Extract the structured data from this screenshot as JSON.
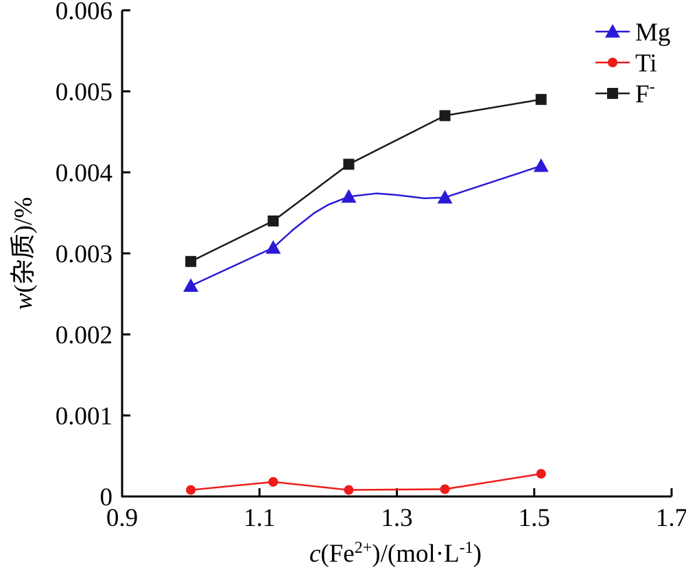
{
  "chart_data": {
    "type": "line",
    "xlabel": {
      "var": "c",
      "open": "(Fe",
      "sup1": "2+",
      "mid": ")/(mol·L",
      "sup2": "-1",
      "close": ")"
    },
    "ylabel": {
      "var": "w",
      "rest": "(杂质)/%"
    },
    "xlim": [
      0.9,
      1.7
    ],
    "ylim": [
      0,
      0.006
    ],
    "xticks": [
      0.9,
      1.1,
      1.3,
      1.5,
      1.7
    ],
    "xtick_labels": [
      "0.9",
      "1.1",
      "1.3",
      "1.5",
      "1.7"
    ],
    "yticks": [
      0,
      0.001,
      0.002,
      0.003,
      0.004,
      0.005,
      0.006
    ],
    "ytick_labels": [
      "0",
      "0.001",
      "0.002",
      "0.003",
      "0.004",
      "0.005",
      "0.006"
    ],
    "legend_position": "top-right",
    "grid": false,
    "series": [
      {
        "name": "Mg",
        "color": "#2b1bd6",
        "marker": "triangle",
        "x": [
          1.0,
          1.12,
          1.23,
          1.37,
          1.51
        ],
        "y": [
          0.0026,
          0.00307,
          0.0037,
          0.00369,
          0.00408
        ],
        "curve_x": [
          1.0,
          1.12,
          1.15,
          1.18,
          1.2,
          1.23,
          1.27,
          1.3,
          1.34,
          1.37,
          1.51
        ],
        "curve_y": [
          0.0026,
          0.00307,
          0.0033,
          0.0035,
          0.0036,
          0.0037,
          0.00374,
          0.00372,
          0.00368,
          0.00369,
          0.00408
        ]
      },
      {
        "name": "Ti",
        "color": "#f01a1a",
        "marker": "circle",
        "x": [
          1.0,
          1.12,
          1.23,
          1.37,
          1.51
        ],
        "y": [
          8e-05,
          0.00018,
          8e-05,
          9e-05,
          0.00028
        ]
      },
      {
        "name": "F",
        "name_sup": "-",
        "color": "#1a1a1a",
        "marker": "square",
        "x": [
          1.0,
          1.12,
          1.23,
          1.37,
          1.51
        ],
        "y": [
          0.0029,
          0.0034,
          0.0041,
          0.0047,
          0.0049
        ]
      }
    ]
  }
}
